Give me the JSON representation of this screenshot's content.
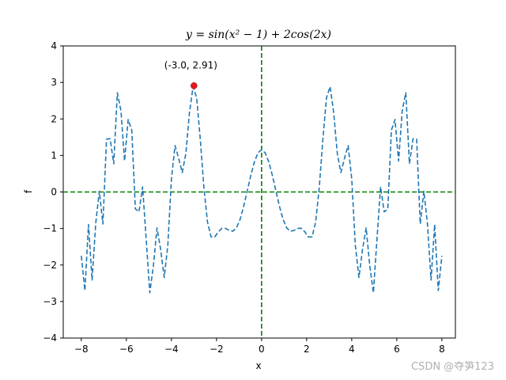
{
  "chart_data": {
    "type": "line",
    "title": "y = sin(x² − 1) + 2cos(2x)",
    "xlabel": "x",
    "ylabel": "f",
    "xlim": [
      -8.8,
      8.6
    ],
    "ylim": [
      -4,
      4
    ],
    "xticks": [
      -8,
      -6,
      -4,
      -2,
      0,
      2,
      4,
      6,
      8
    ],
    "yticks": [
      -4,
      -3,
      -2,
      -1,
      0,
      1,
      2,
      3,
      4
    ],
    "series": [
      {
        "function": "sin(x^2 - 1) + 2*cos(2*x)",
        "x_range": [
          -8,
          8
        ],
        "line_style": "dashed",
        "color": "#1f77b4"
      }
    ],
    "reference_lines": [
      {
        "orientation": "horizontal",
        "value": 0,
        "style": "dashed",
        "color": "#008000"
      },
      {
        "orientation": "vertical",
        "value": 0,
        "style": "dashed",
        "color": "#008000"
      }
    ],
    "highlight_point": {
      "x": -3.0,
      "y": 2.91,
      "label": "(-3.0, 2.91)",
      "color": "#e41a1c"
    }
  },
  "watermark": "CSDN @夺笋123"
}
